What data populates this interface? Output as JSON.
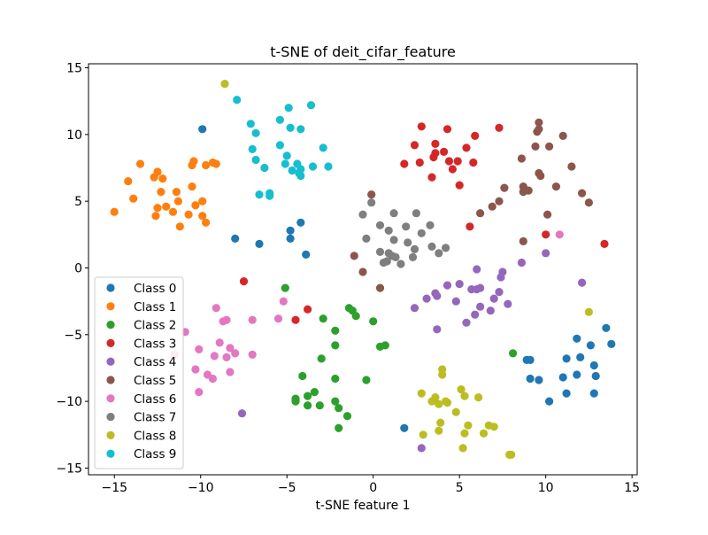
{
  "chart_data": {
    "type": "scatter",
    "title": "t-SNE of deit_cifar_feature",
    "xlabel": "t-SNE feature 1",
    "ylabel": "",
    "xlim": [
      -16.5,
      15.3
    ],
    "ylim": [
      -15.5,
      15.3
    ],
    "xticks": [
      -15,
      -10,
      -5,
      0,
      5,
      10,
      15
    ],
    "yticks": [
      -15,
      -10,
      -5,
      0,
      5,
      10,
      15
    ],
    "xtick_labels": [
      "−15",
      "−10",
      "−5",
      "0",
      "5",
      "10",
      "15"
    ],
    "ytick_labels": [
      "−15",
      "−10",
      "−5",
      "0",
      "5",
      "10",
      "15"
    ],
    "grid": false,
    "legend_position": "lower-left",
    "series": [
      {
        "name": "Class 0",
        "color": "#1f77b4",
        "points": [
          [
            -9.9,
            10.4
          ],
          [
            -8.0,
            2.2
          ],
          [
            -6.6,
            1.8
          ],
          [
            -4.8,
            2.8
          ],
          [
            -4.8,
            2.2
          ],
          [
            -4.2,
            3.4
          ],
          [
            -3.9,
            1.0
          ],
          [
            1.8,
            -12.0
          ],
          [
            8.9,
            -6.9
          ],
          [
            9.1,
            -6.9
          ],
          [
            9.1,
            -8.3
          ],
          [
            9.6,
            -8.4
          ],
          [
            10.2,
            -10.0
          ],
          [
            11.0,
            -8.2
          ],
          [
            11.2,
            -6.8
          ],
          [
            11.2,
            -9.4
          ],
          [
            11.8,
            -5.3
          ],
          [
            11.8,
            -8.0
          ],
          [
            12.0,
            -6.7
          ],
          [
            12.6,
            -5.8
          ],
          [
            12.8,
            -7.3
          ],
          [
            12.8,
            -9.4
          ],
          [
            12.9,
            -8.1
          ],
          [
            13.5,
            -4.5
          ],
          [
            13.8,
            -5.7
          ]
        ]
      },
      {
        "name": "Class 1",
        "color": "#ff7f0e",
        "points": [
          [
            -15.0,
            4.2
          ],
          [
            -14.2,
            6.5
          ],
          [
            -13.9,
            5.2
          ],
          [
            -13.5,
            7.8
          ],
          [
            -12.7,
            6.8
          ],
          [
            -12.6,
            3.9
          ],
          [
            -12.5,
            7.2
          ],
          [
            -12.5,
            4.5
          ],
          [
            -12.3,
            5.7
          ],
          [
            -12.2,
            6.7
          ],
          [
            -12.0,
            4.6
          ],
          [
            -11.6,
            4.2
          ],
          [
            -11.4,
            5.7
          ],
          [
            -11.3,
            5.0
          ],
          [
            -11.2,
            3.1
          ],
          [
            -10.7,
            4.0
          ],
          [
            -10.5,
            6.1
          ],
          [
            -10.5,
            7.7
          ],
          [
            -10.4,
            8.0
          ],
          [
            -10.3,
            4.7
          ],
          [
            -9.9,
            5.0
          ],
          [
            -9.9,
            3.9
          ],
          [
            -9.7,
            7.7
          ],
          [
            -9.7,
            3.4
          ],
          [
            -9.3,
            7.9
          ],
          [
            -9.1,
            7.8
          ]
        ]
      },
      {
        "name": "Class 2",
        "color": "#2ca02c",
        "points": [
          [
            -5.1,
            -1.5
          ],
          [
            -4.5,
            -9.8
          ],
          [
            -4.5,
            -10.0
          ],
          [
            -4.1,
            -8.1
          ],
          [
            -3.8,
            -10.3
          ],
          [
            -3.8,
            -9.6
          ],
          [
            -3.4,
            -9.3
          ],
          [
            -3.1,
            -10.3
          ],
          [
            -3.0,
            -6.8
          ],
          [
            -2.9,
            -3.8
          ],
          [
            -2.2,
            -8.3
          ],
          [
            -2.2,
            -10.0
          ],
          [
            -2.2,
            -5.8
          ],
          [
            -2.2,
            -4.7
          ],
          [
            -2.0,
            -12.0
          ],
          [
            -2.0,
            -10.5
          ],
          [
            -1.5,
            -11.1
          ],
          [
            -1.4,
            -3.0
          ],
          [
            -1.2,
            -3.2
          ],
          [
            -1.0,
            -3.6
          ],
          [
            -0.4,
            -8.4
          ],
          [
            0.0,
            -4.0
          ],
          [
            0.4,
            -5.9
          ],
          [
            0.7,
            -5.8
          ],
          [
            8.1,
            -6.4
          ]
        ]
      },
      {
        "name": "Class 3",
        "color": "#d62728",
        "points": [
          [
            -7.5,
            -1.0
          ],
          [
            -4.5,
            -3.9
          ],
          [
            -3.8,
            -3.1
          ],
          [
            1.8,
            7.8
          ],
          [
            2.4,
            9.2
          ],
          [
            2.7,
            7.9
          ],
          [
            2.8,
            10.6
          ],
          [
            3.4,
            6.8
          ],
          [
            3.5,
            8.3
          ],
          [
            3.6,
            8.6
          ],
          [
            3.6,
            9.3
          ],
          [
            4.1,
            8.7
          ],
          [
            4.3,
            10.4
          ],
          [
            4.4,
            8.0
          ],
          [
            4.6,
            7.4
          ],
          [
            4.9,
            8.0
          ],
          [
            5.0,
            6.2
          ],
          [
            5.4,
            9.0
          ],
          [
            5.6,
            3.1
          ],
          [
            5.8,
            7.9
          ],
          [
            5.9,
            9.9
          ],
          [
            7.3,
            10.5
          ],
          [
            10.0,
            2.5
          ],
          [
            13.4,
            1.8
          ]
        ]
      },
      {
        "name": "Class 4",
        "color": "#9467bd",
        "points": [
          [
            -7.6,
            -10.9
          ],
          [
            2.4,
            -3.0
          ],
          [
            2.8,
            -13.5
          ],
          [
            3.1,
            -2.3
          ],
          [
            3.6,
            -1.9
          ],
          [
            3.7,
            -2.1
          ],
          [
            3.7,
            -4.6
          ],
          [
            4.3,
            -1.3
          ],
          [
            4.8,
            -2.5
          ],
          [
            5.0,
            -1.2
          ],
          [
            5.4,
            -4.1
          ],
          [
            5.7,
            -1.6
          ],
          [
            5.9,
            -3.5
          ],
          [
            6.0,
            -1.6
          ],
          [
            6.0,
            -0.1
          ],
          [
            6.2,
            -1.5
          ],
          [
            6.2,
            -2.9
          ],
          [
            6.8,
            -3.2
          ],
          [
            7.0,
            -2.3
          ],
          [
            7.3,
            -1.8
          ],
          [
            7.4,
            -0.7
          ],
          [
            7.5,
            -0.3
          ],
          [
            7.8,
            -2.7
          ],
          [
            8.6,
            0.4
          ],
          [
            10.0,
            1.1
          ],
          [
            12.1,
            -1.1
          ]
        ]
      },
      {
        "name": "Class 5",
        "color": "#8c564b",
        "points": [
          [
            -1.1,
            0.9
          ],
          [
            -0.6,
            -0.3
          ],
          [
            -0.1,
            5.5
          ],
          [
            0.4,
            -1.5
          ],
          [
            6.2,
            4.1
          ],
          [
            6.9,
            4.6
          ],
          [
            7.3,
            5.0
          ],
          [
            7.6,
            6.0
          ],
          [
            8.6,
            8.2
          ],
          [
            8.7,
            2.0
          ],
          [
            8.7,
            5.7
          ],
          [
            8.7,
            6.1
          ],
          [
            9.0,
            5.8
          ],
          [
            9.4,
            9.1
          ],
          [
            9.5,
            10.2
          ],
          [
            9.6,
            10.4
          ],
          [
            9.6,
            10.9
          ],
          [
            9.6,
            7.1
          ],
          [
            9.7,
            6.9
          ],
          [
            10.1,
            4.0
          ],
          [
            10.2,
            9.1
          ],
          [
            10.6,
            6.1
          ],
          [
            11.0,
            9.9
          ],
          [
            11.5,
            7.6
          ],
          [
            12.1,
            5.6
          ],
          [
            12.5,
            4.9
          ]
        ]
      },
      {
        "name": "Class 6",
        "color": "#e377c2",
        "points": [
          [
            -11.5,
            -6.5
          ],
          [
            -10.9,
            -4.8
          ],
          [
            -10.3,
            -7.6
          ],
          [
            -10.1,
            -9.3
          ],
          [
            -10.1,
            -6.1
          ],
          [
            -9.6,
            -8.0
          ],
          [
            -9.3,
            -8.3
          ],
          [
            -9.2,
            -6.6
          ],
          [
            -9.1,
            -3.0
          ],
          [
            -8.9,
            -5.6
          ],
          [
            -8.7,
            -4.0
          ],
          [
            -8.5,
            -3.9
          ],
          [
            -8.5,
            -6.7
          ],
          [
            -8.3,
            -6.0
          ],
          [
            -8.3,
            -7.8
          ],
          [
            -8.0,
            -6.4
          ],
          [
            -7.0,
            -3.9
          ],
          [
            -7.0,
            -6.5
          ],
          [
            -5.5,
            -3.8
          ],
          [
            -5.2,
            -2.5
          ],
          [
            10.8,
            2.5
          ]
        ]
      },
      {
        "name": "Class 7",
        "color": "#7f7f7f",
        "points": [
          [
            -0.6,
            4.0
          ],
          [
            -0.4,
            2.2
          ],
          [
            -0.1,
            4.9
          ],
          [
            0.4,
            1.2
          ],
          [
            0.4,
            3.2
          ],
          [
            0.6,
            0.4
          ],
          [
            0.8,
            0.5
          ],
          [
            0.9,
            2.8
          ],
          [
            0.9,
            1.1
          ],
          [
            1.1,
            0.9
          ],
          [
            1.2,
            4.1
          ],
          [
            1.2,
            2.1
          ],
          [
            1.3,
            0.8
          ],
          [
            1.6,
            0.3
          ],
          [
            1.9,
            3.1
          ],
          [
            2.0,
            1.9
          ],
          [
            2.3,
            0.8
          ],
          [
            2.4,
            1.4
          ],
          [
            2.5,
            4.1
          ],
          [
            2.8,
            2.6
          ],
          [
            3.3,
            3.2
          ],
          [
            3.4,
            1.6
          ],
          [
            3.8,
            1.1
          ],
          [
            4.2,
            1.5
          ]
        ]
      },
      {
        "name": "Class 8",
        "color": "#bcbd22",
        "points": [
          [
            -8.6,
            13.8
          ],
          [
            2.8,
            -9.4
          ],
          [
            2.9,
            -12.5
          ],
          [
            3.4,
            -10.0
          ],
          [
            3.6,
            -9.7
          ],
          [
            3.8,
            -10.2
          ],
          [
            3.8,
            -12.2
          ],
          [
            3.9,
            -11.6
          ],
          [
            4.0,
            -7.6
          ],
          [
            4.0,
            -8.0
          ],
          [
            4.2,
            -10.0
          ],
          [
            4.3,
            -10.1
          ],
          [
            4.8,
            -10.8
          ],
          [
            5.1,
            -9.1
          ],
          [
            5.2,
            -13.5
          ],
          [
            5.3,
            -12.4
          ],
          [
            5.5,
            -11.8
          ],
          [
            5.3,
            -9.6
          ],
          [
            6.1,
            -9.7
          ],
          [
            6.4,
            -12.4
          ],
          [
            6.7,
            -11.8
          ],
          [
            7.0,
            -11.9
          ],
          [
            7.9,
            -14.0
          ],
          [
            8.0,
            -14.0
          ],
          [
            12.5,
            -3.3
          ]
        ]
      },
      {
        "name": "Class 9",
        "color": "#17becf",
        "points": [
          [
            -7.9,
            12.6
          ],
          [
            -7.1,
            10.8
          ],
          [
            -7.0,
            8.9
          ],
          [
            -6.8,
            10.1
          ],
          [
            -6.8,
            8.1
          ],
          [
            -6.6,
            5.5
          ],
          [
            -6.3,
            7.5
          ],
          [
            -6.0,
            5.6
          ],
          [
            -6.0,
            5.4
          ],
          [
            -5.4,
            9.2
          ],
          [
            -5.4,
            11.1
          ],
          [
            -5.1,
            7.8
          ],
          [
            -5.0,
            8.4
          ],
          [
            -4.9,
            12.0
          ],
          [
            -4.8,
            10.5
          ],
          [
            -4.7,
            7.3
          ],
          [
            -4.4,
            7.8
          ],
          [
            -4.3,
            7.1
          ],
          [
            -4.2,
            10.4
          ],
          [
            -4.2,
            6.9
          ],
          [
            -4.2,
            7.4
          ],
          [
            -3.6,
            12.2
          ],
          [
            -3.5,
            7.6
          ],
          [
            -2.9,
            9.0
          ],
          [
            -2.6,
            7.6
          ]
        ]
      }
    ]
  }
}
